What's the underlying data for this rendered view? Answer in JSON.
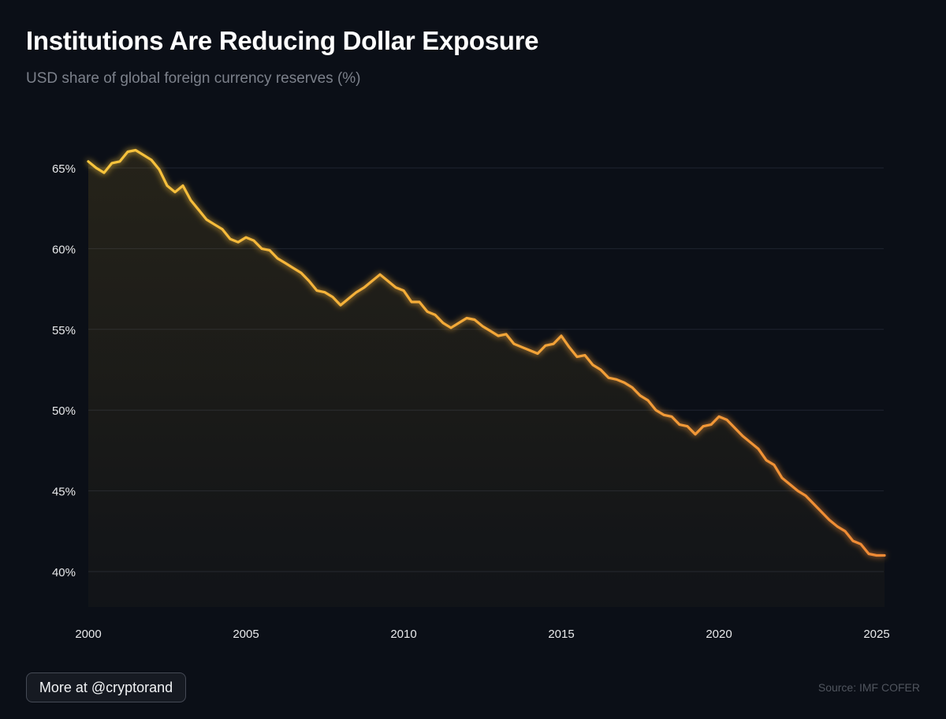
{
  "header": {
    "title": "Institutions Are Reducing Dollar Exposure",
    "subtitle": "USD share of global foreign currency reserves (%)"
  },
  "footer": {
    "cta_label": "More at @cryptorand",
    "source": "Source: IMF COFER"
  },
  "colors": {
    "background": "#0b0f17",
    "line_start": "#f7c53c",
    "line_end": "#f08a35",
    "grid": "#1f2430",
    "tick_label": "#e8e9eb"
  },
  "chart_data": {
    "type": "line",
    "title": "Institutions Are Reducing Dollar Exposure",
    "subtitle": "USD share of global foreign currency reserves (%)",
    "xlabel": "",
    "ylabel": "",
    "xlim": [
      2000,
      2025.25
    ],
    "ylim": [
      38,
      68
    ],
    "grid": true,
    "legend": "none",
    "fill_under": true,
    "x_ticks": [
      2000,
      2005,
      2010,
      2015,
      2020,
      2025
    ],
    "x_tick_labels": [
      "2000",
      "2005",
      "2010",
      "2015",
      "2020",
      "2025"
    ],
    "y_ticks": [
      40,
      45,
      50,
      55,
      60,
      65
    ],
    "y_tick_labels": [
      "40%",
      "45%",
      "50%",
      "55%",
      "60%",
      "65%"
    ],
    "series": [
      {
        "name": "USD share",
        "x": [
          2000.0,
          2000.25,
          2000.5,
          2000.75,
          2001.0,
          2001.25,
          2001.5,
          2001.75,
          2002.0,
          2002.25,
          2002.5,
          2002.75,
          2003.0,
          2003.25,
          2003.5,
          2003.75,
          2004.0,
          2004.25,
          2004.5,
          2004.75,
          2005.0,
          2005.25,
          2005.5,
          2005.75,
          2006.0,
          2006.25,
          2006.5,
          2006.75,
          2007.0,
          2007.25,
          2007.5,
          2007.75,
          2008.0,
          2008.25,
          2008.5,
          2008.75,
          2009.0,
          2009.25,
          2009.5,
          2009.75,
          2010.0,
          2010.25,
          2010.5,
          2010.75,
          2011.0,
          2011.25,
          2011.5,
          2011.75,
          2012.0,
          2012.25,
          2012.5,
          2012.75,
          2013.0,
          2013.25,
          2013.5,
          2013.75,
          2014.0,
          2014.25,
          2014.5,
          2014.75,
          2015.0,
          2015.25,
          2015.5,
          2015.75,
          2016.0,
          2016.25,
          2016.5,
          2016.75,
          2017.0,
          2017.25,
          2017.5,
          2017.75,
          2018.0,
          2018.25,
          2018.5,
          2018.75,
          2019.0,
          2019.25,
          2019.5,
          2019.75,
          2020.0,
          2020.25,
          2020.5,
          2020.75,
          2021.0,
          2021.25,
          2021.5,
          2021.75,
          2022.0,
          2022.25,
          2022.5,
          2022.75,
          2023.0,
          2023.25,
          2023.5,
          2023.75,
          2024.0,
          2024.25,
          2024.5,
          2024.75,
          2025.0,
          2025.25
        ],
        "values": [
          65.4,
          65.0,
          64.7,
          65.3,
          65.4,
          66.0,
          66.1,
          65.8,
          65.5,
          64.9,
          63.9,
          63.5,
          63.9,
          63.0,
          62.4,
          61.8,
          61.5,
          61.2,
          60.6,
          60.4,
          60.7,
          60.5,
          60.0,
          59.9,
          59.4,
          59.1,
          58.8,
          58.5,
          58.0,
          57.4,
          57.3,
          57.0,
          56.5,
          56.9,
          57.3,
          57.6,
          58.0,
          58.4,
          58.0,
          57.6,
          57.4,
          56.7,
          56.7,
          56.1,
          55.9,
          55.4,
          55.1,
          55.4,
          55.7,
          55.6,
          55.2,
          54.9,
          54.6,
          54.7,
          54.1,
          53.9,
          53.7,
          53.5,
          54.0,
          54.1,
          54.6,
          53.9,
          53.3,
          53.4,
          52.8,
          52.5,
          52.0,
          51.9,
          51.7,
          51.4,
          50.9,
          50.6,
          50.0,
          49.7,
          49.6,
          49.1,
          49.0,
          48.5,
          49.0,
          49.1,
          49.6,
          49.4,
          48.9,
          48.4,
          48.0,
          47.6,
          46.9,
          46.6,
          45.8,
          45.4,
          45.0,
          44.7,
          44.2,
          43.7,
          43.2,
          42.8,
          42.5,
          41.9,
          41.7,
          41.1,
          41.0,
          41.0
        ]
      }
    ]
  }
}
